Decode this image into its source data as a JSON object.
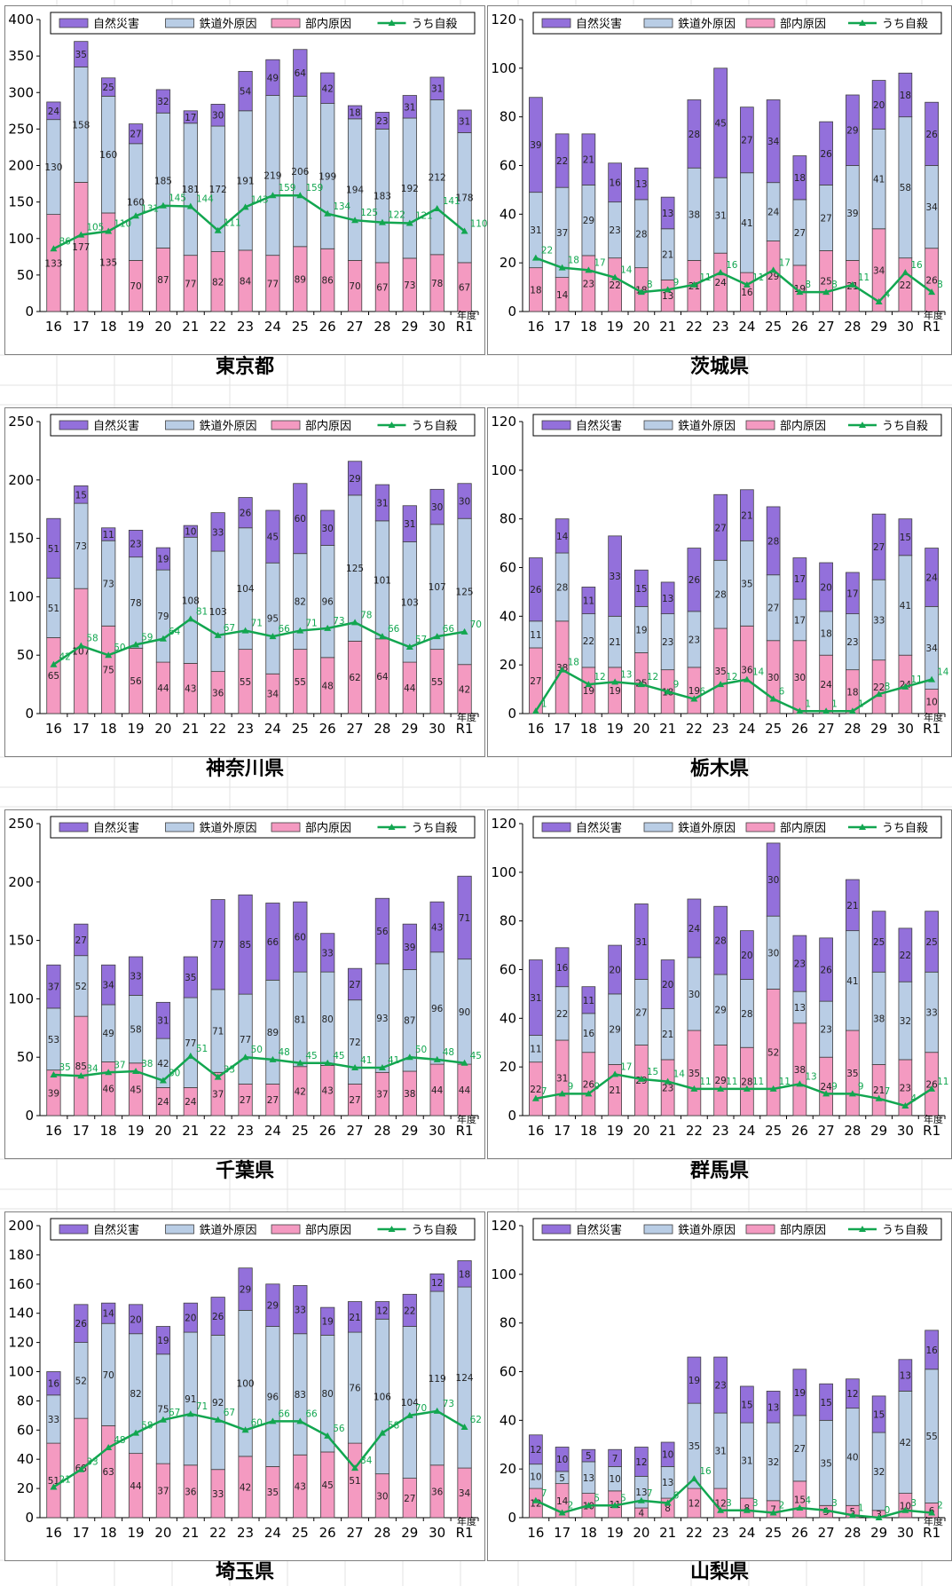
{
  "legend": {
    "natural": "自然災害",
    "external": "鉄道外原因",
    "internal": "部内原因",
    "suicide": "うち自殺"
  },
  "colors": {
    "natural": "#9370DB",
    "external": "#B9CDE5",
    "internal": "#F49AC1",
    "suicide": "#12A650"
  },
  "x_unit": "年度",
  "chart_data": [
    {
      "type": "bar",
      "title": "東京都",
      "categories": [
        "16",
        "17",
        "18",
        "19",
        "20",
        "21",
        "22",
        "23",
        "24",
        "25",
        "26",
        "27",
        "28",
        "29",
        "30",
        "R1"
      ],
      "ylim": [
        0,
        400
      ],
      "yticks": [
        0,
        50,
        100,
        150,
        200,
        250,
        300,
        350,
        400
      ],
      "series": [
        {
          "name": "部内原因",
          "values": [
            133,
            177,
            135,
            70,
            87,
            77,
            82,
            84,
            77,
            89,
            86,
            70,
            67,
            73,
            78,
            67
          ]
        },
        {
          "name": "鉄道外原因",
          "values": [
            130,
            158,
            160,
            160,
            185,
            181,
            172,
            191,
            219,
            206,
            199,
            194,
            183,
            192,
            212,
            178
          ]
        },
        {
          "name": "自然災害",
          "values": [
            24,
            35,
            25,
            27,
            32,
            17,
            30,
            54,
            49,
            64,
            42,
            18,
            23,
            31,
            31,
            31
          ]
        },
        {
          "name": "うち自殺",
          "values": [
            86,
            105,
            110,
            131,
            145,
            144,
            111,
            143,
            159,
            159,
            134,
            125,
            122,
            121,
            141,
            110
          ]
        }
      ]
    },
    {
      "type": "bar",
      "title": "茨城県",
      "categories": [
        "16",
        "17",
        "18",
        "19",
        "20",
        "21",
        "22",
        "23",
        "24",
        "25",
        "26",
        "27",
        "28",
        "29",
        "30",
        "R1"
      ],
      "ylim": [
        0,
        120
      ],
      "yticks": [
        0,
        20,
        40,
        60,
        80,
        100,
        120
      ],
      "series": [
        {
          "name": "部内原因",
          "values": [
            18,
            14,
            23,
            22,
            18,
            13,
            21,
            24,
            16,
            29,
            19,
            25,
            21,
            34,
            22,
            26
          ]
        },
        {
          "name": "鉄道外原因",
          "values": [
            31,
            37,
            29,
            23,
            28,
            21,
            38,
            31,
            41,
            24,
            27,
            27,
            39,
            41,
            58,
            34
          ]
        },
        {
          "name": "自然災害",
          "values": [
            39,
            22,
            21,
            16,
            13,
            13,
            28,
            45,
            27,
            34,
            18,
            26,
            29,
            20,
            18,
            26
          ]
        },
        {
          "name": "うち自殺",
          "values": [
            22,
            18,
            17,
            14,
            8,
            9,
            11,
            16,
            11,
            17,
            8,
            8,
            11,
            4,
            16,
            8
          ]
        }
      ]
    },
    {
      "type": "bar",
      "title": "神奈川県",
      "categories": [
        "16",
        "17",
        "18",
        "19",
        "20",
        "21",
        "22",
        "23",
        "24",
        "25",
        "26",
        "27",
        "28",
        "29",
        "30",
        "R1"
      ],
      "ylim": [
        0,
        250
      ],
      "yticks": [
        0,
        50,
        100,
        150,
        200,
        250
      ],
      "series": [
        {
          "name": "部内原因",
          "values": [
            65,
            107,
            75,
            56,
            44,
            43,
            36,
            55,
            34,
            55,
            48,
            62,
            64,
            44,
            55,
            42
          ]
        },
        {
          "name": "鉄道外原因",
          "values": [
            51,
            73,
            73,
            78,
            79,
            108,
            103,
            104,
            95,
            82,
            96,
            125,
            101,
            103,
            107,
            125
          ]
        },
        {
          "name": "自然災害",
          "values": [
            51,
            15,
            11,
            23,
            19,
            10,
            33,
            26,
            45,
            60,
            30,
            29,
            31,
            31,
            30,
            30
          ]
        },
        {
          "name": "うち自殺",
          "values": [
            42,
            58,
            50,
            59,
            64,
            81,
            67,
            71,
            66,
            71,
            73,
            78,
            66,
            57,
            66,
            70
          ]
        }
      ]
    },
    {
      "type": "bar",
      "title": "栃木県",
      "categories": [
        "16",
        "17",
        "18",
        "19",
        "20",
        "21",
        "22",
        "23",
        "24",
        "25",
        "26",
        "27",
        "28",
        "29",
        "30",
        "R1"
      ],
      "ylim": [
        0,
        120
      ],
      "yticks": [
        0,
        20,
        40,
        60,
        80,
        100,
        120
      ],
      "series": [
        {
          "name": "部内原因",
          "values": [
            27,
            38,
            19,
            19,
            25,
            18,
            19,
            35,
            36,
            30,
            30,
            24,
            18,
            22,
            24,
            10
          ]
        },
        {
          "name": "鉄道外原因",
          "values": [
            11,
            28,
            22,
            21,
            19,
            23,
            23,
            28,
            35,
            27,
            17,
            18,
            23,
            33,
            41,
            34
          ]
        },
        {
          "name": "自然災害",
          "values": [
            26,
            14,
            11,
            33,
            15,
            13,
            26,
            27,
            21,
            28,
            17,
            20,
            17,
            27,
            15,
            24
          ]
        },
        {
          "name": "うち自殺",
          "values": [
            1,
            18,
            12,
            13,
            12,
            9,
            6,
            12,
            14,
            6,
            1,
            1,
            1,
            8,
            11,
            14
          ]
        }
      ]
    },
    {
      "type": "bar",
      "title": "千葉県",
      "categories": [
        "16",
        "17",
        "18",
        "19",
        "20",
        "21",
        "22",
        "23",
        "24",
        "25",
        "26",
        "27",
        "28",
        "29",
        "30",
        "R1"
      ],
      "ylim": [
        0,
        250
      ],
      "yticks": [
        0,
        50,
        100,
        150,
        200,
        250
      ],
      "series": [
        {
          "name": "部内原因",
          "values": [
            39,
            85,
            46,
            45,
            24,
            24,
            37,
            27,
            27,
            42,
            43,
            27,
            37,
            38,
            44,
            44
          ]
        },
        {
          "name": "鉄道外原因",
          "values": [
            53,
            52,
            49,
            58,
            42,
            77,
            71,
            77,
            89,
            81,
            80,
            72,
            93,
            87,
            96,
            90
          ]
        },
        {
          "name": "自然災害",
          "values": [
            37,
            27,
            34,
            33,
            31,
            35,
            77,
            85,
            66,
            60,
            33,
            27,
            56,
            39,
            43,
            71
          ]
        },
        {
          "name": "うち自殺",
          "values": [
            35,
            34,
            37,
            38,
            30,
            51,
            33,
            50,
            48,
            45,
            45,
            41,
            41,
            50,
            48,
            45
          ]
        }
      ]
    },
    {
      "type": "bar",
      "title": "群馬県",
      "categories": [
        "16",
        "17",
        "18",
        "19",
        "20",
        "21",
        "22",
        "23",
        "24",
        "25",
        "26",
        "27",
        "28",
        "29",
        "30",
        "R1"
      ],
      "ylim": [
        0,
        120
      ],
      "yticks": [
        0,
        20,
        40,
        60,
        80,
        100,
        120
      ],
      "series": [
        {
          "name": "部内原因",
          "values": [
            22,
            31,
            26,
            21,
            29,
            23,
            35,
            29,
            28,
            52,
            38,
            24,
            35,
            21,
            23,
            26
          ]
        },
        {
          "name": "鉄道外原因",
          "values": [
            11,
            22,
            16,
            29,
            27,
            21,
            30,
            29,
            28,
            30,
            13,
            23,
            41,
            38,
            32,
            33
          ]
        },
        {
          "name": "自然災害",
          "values": [
            31,
            16,
            11,
            20,
            31,
            20,
            24,
            28,
            20,
            30,
            23,
            26,
            21,
            25,
            22,
            25
          ]
        },
        {
          "name": "うち自殺",
          "values": [
            7,
            9,
            9,
            17,
            15,
            14,
            11,
            11,
            11,
            11,
            13,
            9,
            9,
            7,
            4,
            11
          ]
        }
      ]
    },
    {
      "type": "bar",
      "title": "埼玉県",
      "categories": [
        "16",
        "17",
        "18",
        "19",
        "20",
        "21",
        "22",
        "23",
        "24",
        "25",
        "26",
        "27",
        "28",
        "29",
        "30",
        "R1"
      ],
      "ylim": [
        0,
        200
      ],
      "yticks": [
        0,
        20,
        40,
        60,
        80,
        100,
        120,
        140,
        160,
        180,
        200
      ],
      "series": [
        {
          "name": "部内原因",
          "values": [
            51,
            68,
            63,
            44,
            37,
            36,
            33,
            42,
            35,
            43,
            45,
            51,
            30,
            27,
            36,
            34
          ]
        },
        {
          "name": "鉄道外原因",
          "values": [
            33,
            52,
            70,
            82,
            75,
            91,
            92,
            100,
            96,
            83,
            80,
            76,
            106,
            104,
            119,
            124
          ]
        },
        {
          "name": "自然災害",
          "values": [
            16,
            26,
            14,
            20,
            19,
            20,
            26,
            29,
            29,
            33,
            19,
            21,
            12,
            22,
            12,
            18
          ]
        },
        {
          "name": "うち自殺",
          "values": [
            21,
            33,
            48,
            58,
            67,
            71,
            67,
            60,
            66,
            66,
            56,
            34,
            58,
            70,
            73,
            62
          ]
        }
      ]
    },
    {
      "type": "bar",
      "title": "山梨県",
      "categories": [
        "16",
        "17",
        "18",
        "19",
        "20",
        "21",
        "22",
        "23",
        "24",
        "25",
        "26",
        "27",
        "28",
        "29",
        "30",
        "R1"
      ],
      "ylim": [
        0,
        120
      ],
      "yticks": [
        0,
        20,
        40,
        60,
        80,
        100,
        120
      ],
      "series": [
        {
          "name": "部内原因",
          "values": [
            12,
            14,
            10,
            11,
            4,
            8,
            12,
            12,
            8,
            7,
            15,
            5,
            5,
            3,
            10,
            6
          ]
        },
        {
          "name": "鉄道外原因",
          "values": [
            10,
            5,
            13,
            10,
            13,
            13,
            35,
            31,
            31,
            32,
            27,
            35,
            40,
            32,
            42,
            55
          ]
        },
        {
          "name": "自然災害",
          "values": [
            12,
            10,
            5,
            7,
            12,
            10,
            19,
            23,
            15,
            13,
            19,
            15,
            12,
            15,
            13,
            16
          ]
        },
        {
          "name": "うち自殺",
          "values": [
            7,
            2,
            5,
            5,
            7,
            6,
            16,
            3,
            3,
            2,
            4,
            3,
            1,
            0,
            3,
            2
          ]
        }
      ]
    }
  ]
}
